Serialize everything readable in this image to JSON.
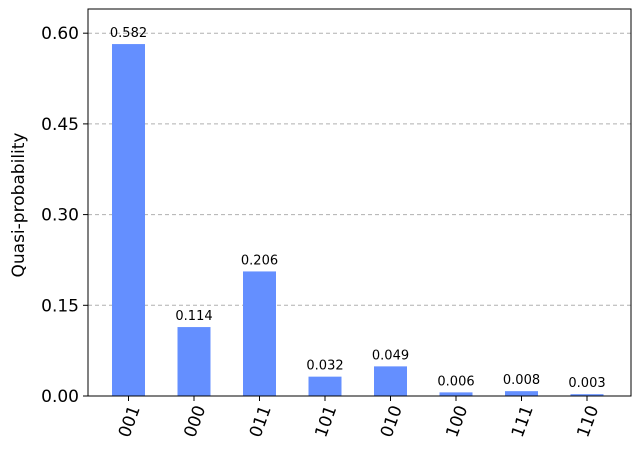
{
  "chart_data": {
    "type": "bar",
    "title": "",
    "xlabel": "",
    "ylabel": "Quasi-probability",
    "categories": [
      "001",
      "000",
      "011",
      "101",
      "010",
      "100",
      "111",
      "110"
    ],
    "values": [
      0.582,
      0.114,
      0.206,
      0.032,
      0.049,
      0.006,
      0.008,
      0.003
    ],
    "data_labels": [
      "0.582",
      "0.114",
      "0.206",
      "0.032",
      "0.049",
      "0.006",
      "0.008",
      "0.003"
    ],
    "yticks": [
      "0.00",
      "0.15",
      "0.30",
      "0.45",
      "0.60"
    ],
    "ytick_values": [
      0,
      0.15,
      0.3,
      0.45,
      0.6
    ],
    "ylim": [
      0,
      0.64
    ],
    "grid": "horizontal dashed",
    "bar_color": "#648fff",
    "x_tick_rotation": "70 degrees"
  }
}
